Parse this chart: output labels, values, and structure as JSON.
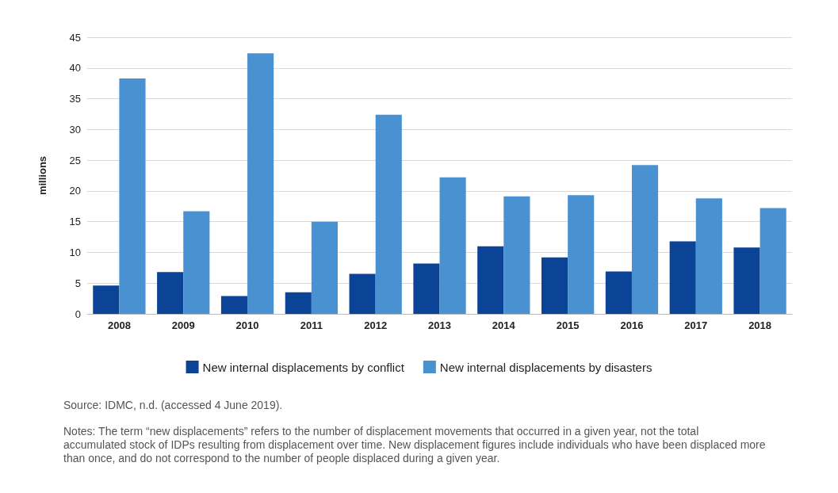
{
  "chart_data": {
    "type": "bar",
    "ylabel": "millions",
    "categories": [
      "2008",
      "2009",
      "2010",
      "2011",
      "2012",
      "2013",
      "2014",
      "2015",
      "2016",
      "2017",
      "2018"
    ],
    "series": [
      {
        "name": "New internal displacements by conflict",
        "color": "#0b4396",
        "values": [
          4.6,
          6.8,
          2.9,
          3.5,
          6.5,
          8.2,
          11.0,
          9.2,
          6.9,
          11.8,
          10.8
        ]
      },
      {
        "name": "New internal displacements by disasters",
        "color": "#4a91d2",
        "values": [
          38.3,
          16.7,
          42.4,
          15.0,
          32.4,
          22.2,
          19.1,
          19.3,
          24.2,
          18.8,
          17.2
        ]
      }
    ],
    "ylim": [
      0,
      45
    ],
    "yticks": [
      0,
      5,
      10,
      15,
      20,
      25,
      30,
      35,
      40,
      45
    ],
    "grid": "y",
    "legend": "bottom",
    "annotations": [
      "Source: IDMC, n.d. (accessed 4 June 2019).",
      "Notes: The term “new displacements” refers to the number of displacement movements that occurred in a given year, not the total accumulated stock of IDPs resulting from displacement over time. New displacement figures include individuals who have been displaced more than once, and do not correspond to the number of people displaced during a given year."
    ]
  }
}
